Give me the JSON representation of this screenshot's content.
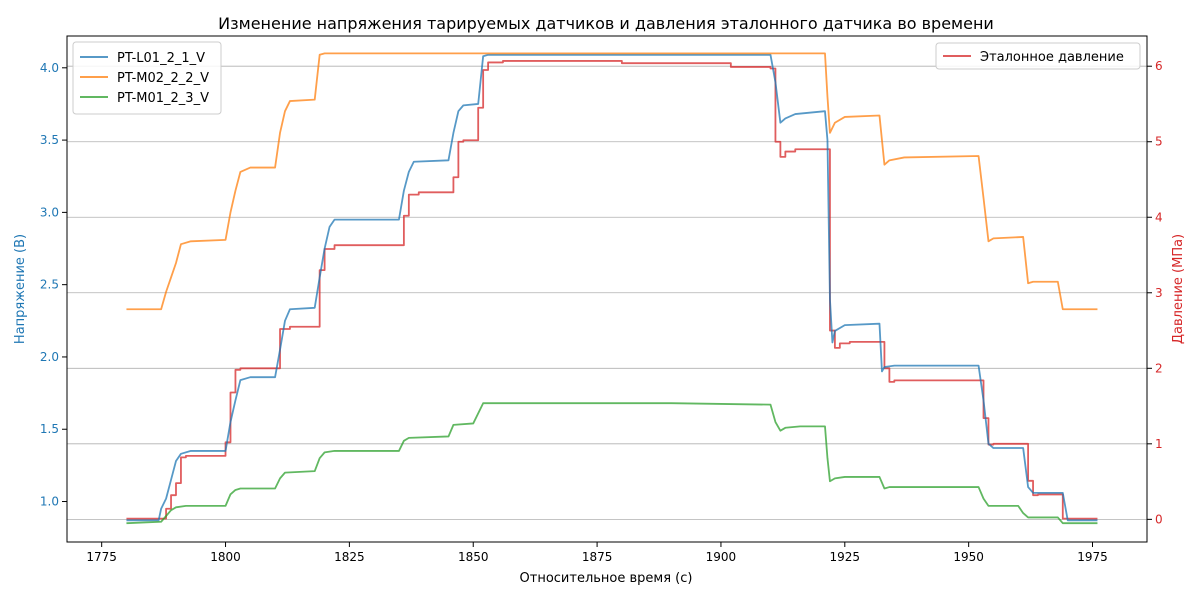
{
  "chart_data": {
    "type": "line",
    "title": "Изменение напряжения тарируемых датчиков и давления эталонного датчика во времени",
    "xlabel": "Относительное время (с)",
    "ylabel": "Напряжение (В)",
    "y2label": "Давление (МПа)",
    "xlim": [
      1768,
      1986
    ],
    "ylim": [
      0.72,
      4.22
    ],
    "y2lim": [
      -0.3,
      6.4
    ],
    "xticks": [
      1775,
      1800,
      1825,
      1850,
      1875,
      1900,
      1925,
      1950,
      1975
    ],
    "yticks": [
      "1.0",
      "1.5",
      "2.0",
      "2.5",
      "3.0",
      "3.5",
      "4.0"
    ],
    "y2ticks": [
      0,
      1,
      2,
      3,
      4,
      5,
      6
    ],
    "grid": "y2-only",
    "legend_left": "top-left",
    "legend_right": "top-right",
    "colors": {
      "PT-L01_2_1_V": "#1f77b4",
      "PT-M02_2_2_V": "#ff7f0e",
      "PT-M01_2_3_V": "#2ca02c",
      "pressure": "#d62728",
      "left_axis": "#1f77b4",
      "right_axis": "#d62728"
    },
    "series": [
      {
        "name": "PT-L01_2_1_V",
        "axis": "left",
        "points": [
          [
            1780,
            0.87
          ],
          [
            1786.5,
            0.87
          ],
          [
            1787,
            0.95
          ],
          [
            1788,
            1.02
          ],
          [
            1789,
            1.15
          ],
          [
            1790,
            1.28
          ],
          [
            1791,
            1.33
          ],
          [
            1793,
            1.35
          ],
          [
            1800,
            1.35
          ],
          [
            1801,
            1.55
          ],
          [
            1802,
            1.7
          ],
          [
            1803,
            1.84
          ],
          [
            1805,
            1.86
          ],
          [
            1810,
            1.86
          ],
          [
            1811,
            2.05
          ],
          [
            1812,
            2.25
          ],
          [
            1813,
            2.33
          ],
          [
            1818,
            2.34
          ],
          [
            1819,
            2.55
          ],
          [
            1820,
            2.75
          ],
          [
            1821,
            2.9
          ],
          [
            1822,
            2.95
          ],
          [
            1835,
            2.95
          ],
          [
            1836,
            3.15
          ],
          [
            1837,
            3.28
          ],
          [
            1838,
            3.35
          ],
          [
            1845,
            3.36
          ],
          [
            1846,
            3.55
          ],
          [
            1847,
            3.7
          ],
          [
            1848,
            3.74
          ],
          [
            1851,
            3.75
          ],
          [
            1852,
            4.08
          ],
          [
            1853,
            4.09
          ],
          [
            1910,
            4.09
          ],
          [
            1911,
            3.9
          ],
          [
            1912,
            3.62
          ],
          [
            1913,
            3.65
          ],
          [
            1915,
            3.68
          ],
          [
            1921,
            3.7
          ],
          [
            1921.5,
            3.5
          ],
          [
            1922,
            2.4
          ],
          [
            1922.5,
            2.1
          ],
          [
            1923,
            2.18
          ],
          [
            1925,
            2.22
          ],
          [
            1932,
            2.23
          ],
          [
            1932.5,
            1.9
          ],
          [
            1933,
            1.93
          ],
          [
            1935,
            1.94
          ],
          [
            1952,
            1.94
          ],
          [
            1953,
            1.7
          ],
          [
            1954,
            1.4
          ],
          [
            1955,
            1.37
          ],
          [
            1961,
            1.37
          ],
          [
            1962,
            1.1
          ],
          [
            1963,
            1.06
          ],
          [
            1969,
            1.06
          ],
          [
            1970,
            0.87
          ],
          [
            1976,
            0.87
          ]
        ]
      },
      {
        "name": "PT-M02_2_2_V",
        "axis": "left",
        "points": [
          [
            1780,
            2.33
          ],
          [
            1787,
            2.33
          ],
          [
            1788,
            2.45
          ],
          [
            1789,
            2.55
          ],
          [
            1790,
            2.65
          ],
          [
            1791,
            2.78
          ],
          [
            1793,
            2.8
          ],
          [
            1800,
            2.81
          ],
          [
            1801,
            3.0
          ],
          [
            1802,
            3.15
          ],
          [
            1803,
            3.28
          ],
          [
            1805,
            3.31
          ],
          [
            1810,
            3.31
          ],
          [
            1811,
            3.55
          ],
          [
            1812,
            3.7
          ],
          [
            1813,
            3.77
          ],
          [
            1818,
            3.78
          ],
          [
            1819,
            4.09
          ],
          [
            1820,
            4.1
          ],
          [
            1921,
            4.1
          ],
          [
            1921.5,
            3.8
          ],
          [
            1922,
            3.55
          ],
          [
            1923,
            3.62
          ],
          [
            1925,
            3.66
          ],
          [
            1932,
            3.67
          ],
          [
            1933,
            3.33
          ],
          [
            1934,
            3.36
          ],
          [
            1937,
            3.38
          ],
          [
            1952,
            3.39
          ],
          [
            1953,
            3.1
          ],
          [
            1954,
            2.8
          ],
          [
            1955,
            2.82
          ],
          [
            1961,
            2.83
          ],
          [
            1962,
            2.51
          ],
          [
            1963,
            2.52
          ],
          [
            1968,
            2.52
          ],
          [
            1969,
            2.33
          ],
          [
            1976,
            2.33
          ]
        ]
      },
      {
        "name": "PT-M01_2_3_V",
        "axis": "left",
        "points": [
          [
            1780,
            0.85
          ],
          [
            1787,
            0.86
          ],
          [
            1788,
            0.9
          ],
          [
            1789,
            0.94
          ],
          [
            1790,
            0.96
          ],
          [
            1792,
            0.97
          ],
          [
            1800,
            0.97
          ],
          [
            1801,
            1.05
          ],
          [
            1802,
            1.08
          ],
          [
            1803,
            1.09
          ],
          [
            1810,
            1.09
          ],
          [
            1811,
            1.16
          ],
          [
            1812,
            1.2
          ],
          [
            1818,
            1.21
          ],
          [
            1819,
            1.3
          ],
          [
            1820,
            1.34
          ],
          [
            1822,
            1.35
          ],
          [
            1835,
            1.35
          ],
          [
            1836,
            1.42
          ],
          [
            1837,
            1.44
          ],
          [
            1845,
            1.45
          ],
          [
            1846,
            1.53
          ],
          [
            1850,
            1.54
          ],
          [
            1852,
            1.68
          ],
          [
            1853,
            1.68
          ],
          [
            1890,
            1.68
          ],
          [
            1910,
            1.67
          ],
          [
            1911,
            1.55
          ],
          [
            1912,
            1.49
          ],
          [
            1913,
            1.51
          ],
          [
            1916,
            1.52
          ],
          [
            1921,
            1.52
          ],
          [
            1921.5,
            1.3
          ],
          [
            1922,
            1.14
          ],
          [
            1923,
            1.16
          ],
          [
            1925,
            1.17
          ],
          [
            1932,
            1.17
          ],
          [
            1933,
            1.09
          ],
          [
            1934,
            1.1
          ],
          [
            1952,
            1.1
          ],
          [
            1953,
            1.02
          ],
          [
            1954,
            0.97
          ],
          [
            1960,
            0.97
          ],
          [
            1961,
            0.92
          ],
          [
            1962,
            0.89
          ],
          [
            1968,
            0.89
          ],
          [
            1969,
            0.85
          ],
          [
            1976,
            0.85
          ]
        ]
      },
      {
        "name": "Эталонное давление",
        "axis": "right",
        "step": true,
        "points": [
          [
            1780,
            0.01
          ],
          [
            1788,
            0.14
          ],
          [
            1789,
            0.32
          ],
          [
            1790,
            0.48
          ],
          [
            1791,
            0.82
          ],
          [
            1792,
            0.84
          ],
          [
            1800,
            1.02
          ],
          [
            1801,
            1.68
          ],
          [
            1802,
            1.98
          ],
          [
            1803,
            2.0
          ],
          [
            1811,
            2.52
          ],
          [
            1813,
            2.55
          ],
          [
            1819,
            3.3
          ],
          [
            1820,
            3.58
          ],
          [
            1822,
            3.63
          ],
          [
            1836,
            4.02
          ],
          [
            1837,
            4.3
          ],
          [
            1839,
            4.33
          ],
          [
            1846,
            4.53
          ],
          [
            1847,
            5.0
          ],
          [
            1848,
            5.02
          ],
          [
            1851,
            5.45
          ],
          [
            1852,
            5.95
          ],
          [
            1853,
            6.05
          ],
          [
            1856,
            6.07
          ],
          [
            1880,
            6.04
          ],
          [
            1902,
            5.99
          ],
          [
            1910,
            5.97
          ],
          [
            1911,
            5.0
          ],
          [
            1912,
            4.8
          ],
          [
            1913,
            4.87
          ],
          [
            1915,
            4.9
          ],
          [
            1922,
            2.5
          ],
          [
            1923,
            2.27
          ],
          [
            1924,
            2.33
          ],
          [
            1926,
            2.35
          ],
          [
            1933,
            2.0
          ],
          [
            1934,
            1.82
          ],
          [
            1935,
            1.84
          ],
          [
            1953,
            1.34
          ],
          [
            1954,
            0.99
          ],
          [
            1955,
            1.0
          ],
          [
            1962,
            0.51
          ],
          [
            1963,
            0.32
          ],
          [
            1964,
            0.33
          ],
          [
            1969,
            0.01
          ],
          [
            1976,
            0.01
          ]
        ]
      }
    ]
  }
}
